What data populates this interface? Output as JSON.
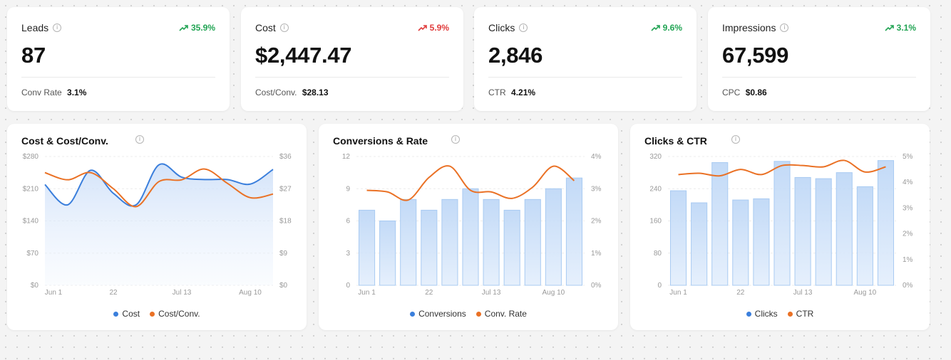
{
  "colors": {
    "blue": "#3b7fdc",
    "orange": "#ea7125",
    "green": "#22a454",
    "red": "#e03c3c"
  },
  "kpis": [
    {
      "title": "Leads",
      "trend": "35.9%",
      "trend_dir": "up-good",
      "value": "87",
      "sub_label": "Conv Rate",
      "sub_value": "3.1%"
    },
    {
      "title": "Cost",
      "trend": "5.9%",
      "trend_dir": "up-bad",
      "value": "$2,447.47",
      "sub_label": "Cost/Conv.",
      "sub_value": "$28.13"
    },
    {
      "title": "Clicks",
      "trend": "9.6%",
      "trend_dir": "up-good",
      "value": "2,846",
      "sub_label": "CTR",
      "sub_value": "4.21%"
    },
    {
      "title": "Impressions",
      "trend": "3.1%",
      "trend_dir": "up-good",
      "value": "67,599",
      "sub_label": "CPC",
      "sub_value": "$0.86"
    }
  ],
  "chart_data": [
    {
      "type": "line",
      "title": "Cost & Cost/Conv.",
      "x_ticks": [
        "Jun 1",
        "22",
        "Jul 13",
        "Aug 10"
      ],
      "y_left_ticks": [
        "$0",
        "$70",
        "$140",
        "$210",
        "$280"
      ],
      "y_right_ticks": [
        "$0",
        "$9",
        "$18",
        "$27",
        "$36"
      ],
      "ylim_left": [
        0,
        280
      ],
      "ylim_right": [
        0,
        36
      ],
      "series": [
        {
          "name": "Cost",
          "axis": "left",
          "style": "area",
          "values": [
            219,
            175,
            250,
            200,
            175,
            262,
            235,
            230,
            230,
            220,
            252
          ]
        },
        {
          "name": "Cost/Conv.",
          "axis": "right",
          "style": "line",
          "values": [
            31.5,
            29.5,
            31.5,
            27,
            22,
            29,
            29.5,
            32.5,
            28.5,
            24.5,
            25.5
          ]
        }
      ]
    },
    {
      "type": "bar",
      "title": "Conversions & Rate",
      "x_ticks": [
        "Jun 1",
        "22",
        "Jul 13",
        "Aug 10"
      ],
      "y_left_ticks": [
        "0",
        "3",
        "6",
        "9",
        "12"
      ],
      "y_right_ticks": [
        "0%",
        "1%",
        "2%",
        "3%",
        "4%"
      ],
      "ylim_left": [
        0,
        12
      ],
      "ylim_right": [
        0,
        4
      ],
      "series": [
        {
          "name": "Conversions",
          "axis": "left",
          "style": "bar",
          "values": [
            7,
            6,
            8,
            7,
            8,
            9,
            8,
            7,
            8,
            9,
            10
          ]
        },
        {
          "name": "Conv. Rate",
          "axis": "right",
          "style": "line",
          "values": [
            2.95,
            2.9,
            2.65,
            3.35,
            3.7,
            2.95,
            2.9,
            2.7,
            3.05,
            3.7,
            3.25
          ]
        }
      ]
    },
    {
      "type": "bar",
      "title": "Clicks & CTR",
      "x_ticks": [
        "Jun 1",
        "22",
        "Jul 13",
        "Aug 10"
      ],
      "y_left_ticks": [
        "0",
        "80",
        "160",
        "240",
        "320"
      ],
      "y_right_ticks": [
        "0%",
        "1%",
        "2%",
        "3%",
        "4%",
        "5%"
      ],
      "ylim_left": [
        0,
        320
      ],
      "ylim_right": [
        0,
        5
      ],
      "series": [
        {
          "name": "Clicks",
          "axis": "left",
          "style": "bar",
          "values": [
            235,
            205,
            305,
            212,
            215,
            308,
            268,
            265,
            280,
            245,
            310
          ]
        },
        {
          "name": "CTR",
          "axis": "right",
          "style": "line",
          "values": [
            4.3,
            4.35,
            4.25,
            4.5,
            4.3,
            4.65,
            4.65,
            4.6,
            4.85,
            4.4,
            4.6
          ]
        }
      ]
    }
  ]
}
